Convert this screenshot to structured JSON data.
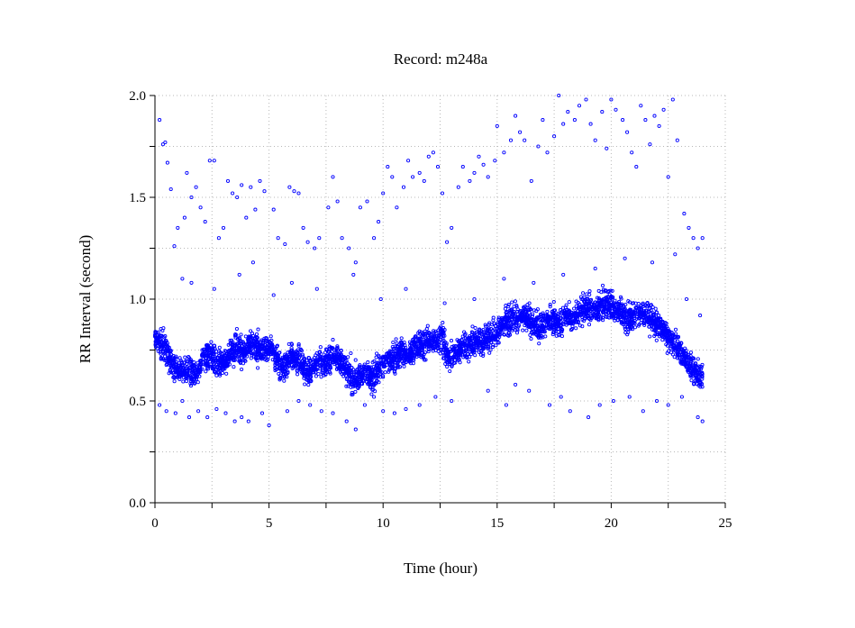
{
  "chart_data": {
    "type": "scatter",
    "title": "Record:  m248a",
    "xlabel": "Time (hour)",
    "ylabel": "RR Interval (second)",
    "xlim": [
      0,
      25
    ],
    "ylim": [
      0,
      2.0
    ],
    "xticks": [
      "0",
      "5",
      "10",
      "15",
      "20",
      "25"
    ],
    "yticks": [
      "0.0",
      "0.5",
      "1.0",
      "1.5",
      "2.0"
    ],
    "grid": true,
    "marker_color": "#0000ff",
    "series": [
      {
        "band_center": [
          [
            0.0,
            0.82
          ],
          [
            0.3,
            0.78
          ],
          [
            0.6,
            0.72
          ],
          [
            0.9,
            0.66
          ],
          [
            1.2,
            0.64
          ],
          [
            1.5,
            0.66
          ],
          [
            1.8,
            0.62
          ],
          [
            2.1,
            0.7
          ],
          [
            2.4,
            0.74
          ],
          [
            2.7,
            0.68
          ],
          [
            3.0,
            0.68
          ],
          [
            3.3,
            0.74
          ],
          [
            3.6,
            0.76
          ],
          [
            3.9,
            0.74
          ],
          [
            4.2,
            0.78
          ],
          [
            4.5,
            0.76
          ],
          [
            4.8,
            0.74
          ],
          [
            5.1,
            0.76
          ],
          [
            5.4,
            0.7
          ],
          [
            5.7,
            0.66
          ],
          [
            6.0,
            0.72
          ],
          [
            6.3,
            0.7
          ],
          [
            6.6,
            0.64
          ],
          [
            6.9,
            0.66
          ],
          [
            7.2,
            0.7
          ],
          [
            7.5,
            0.68
          ],
          [
            7.8,
            0.72
          ],
          [
            8.1,
            0.7
          ],
          [
            8.4,
            0.66
          ],
          [
            8.7,
            0.6
          ],
          [
            9.0,
            0.62
          ],
          [
            9.3,
            0.64
          ],
          [
            9.6,
            0.62
          ],
          [
            9.9,
            0.68
          ],
          [
            10.2,
            0.7
          ],
          [
            10.5,
            0.72
          ],
          [
            10.8,
            0.74
          ],
          [
            11.1,
            0.72
          ],
          [
            11.4,
            0.76
          ],
          [
            11.7,
            0.78
          ],
          [
            12.0,
            0.78
          ],
          [
            12.3,
            0.8
          ],
          [
            12.6,
            0.82
          ],
          [
            12.9,
            0.7
          ],
          [
            13.2,
            0.74
          ],
          [
            13.5,
            0.76
          ],
          [
            13.8,
            0.78
          ],
          [
            14.1,
            0.8
          ],
          [
            14.4,
            0.8
          ],
          [
            14.7,
            0.82
          ],
          [
            15.0,
            0.84
          ],
          [
            15.3,
            0.88
          ],
          [
            15.6,
            0.9
          ],
          [
            15.9,
            0.9
          ],
          [
            16.2,
            0.92
          ],
          [
            16.5,
            0.88
          ],
          [
            16.8,
            0.86
          ],
          [
            17.1,
            0.88
          ],
          [
            17.4,
            0.9
          ],
          [
            17.7,
            0.88
          ],
          [
            18.0,
            0.92
          ],
          [
            18.3,
            0.9
          ],
          [
            18.6,
            0.94
          ],
          [
            18.9,
            0.96
          ],
          [
            19.2,
            0.94
          ],
          [
            19.5,
            0.96
          ],
          [
            19.8,
            0.98
          ],
          [
            20.1,
            0.96
          ],
          [
            20.4,
            0.94
          ],
          [
            20.7,
            0.9
          ],
          [
            21.0,
            0.92
          ],
          [
            21.3,
            0.94
          ],
          [
            21.6,
            0.92
          ],
          [
            21.9,
            0.88
          ],
          [
            22.2,
            0.86
          ],
          [
            22.5,
            0.82
          ],
          [
            22.8,
            0.78
          ],
          [
            23.1,
            0.74
          ],
          [
            23.4,
            0.68
          ],
          [
            23.7,
            0.64
          ],
          [
            24.0,
            0.62
          ]
        ],
        "outliers": [
          [
            0.2,
            1.88
          ],
          [
            0.35,
            1.76
          ],
          [
            0.45,
            1.77
          ],
          [
            0.55,
            1.67
          ],
          [
            0.7,
            1.54
          ],
          [
            0.85,
            1.26
          ],
          [
            1.0,
            1.35
          ],
          [
            1.2,
            1.1
          ],
          [
            1.3,
            1.4
          ],
          [
            1.4,
            1.62
          ],
          [
            1.6,
            1.5
          ],
          [
            1.8,
            1.55
          ],
          [
            2.0,
            1.45
          ],
          [
            2.2,
            1.38
          ],
          [
            2.4,
            1.68
          ],
          [
            2.6,
            1.68
          ],
          [
            2.8,
            1.3
          ],
          [
            3.0,
            1.35
          ],
          [
            3.2,
            1.58
          ],
          [
            3.4,
            1.52
          ],
          [
            3.6,
            1.5
          ],
          [
            3.8,
            1.56
          ],
          [
            4.0,
            1.4
          ],
          [
            4.2,
            1.55
          ],
          [
            4.4,
            1.44
          ],
          [
            4.6,
            1.58
          ],
          [
            4.8,
            1.53
          ],
          [
            5.2,
            1.44
          ],
          [
            5.4,
            1.3
          ],
          [
            5.7,
            1.27
          ],
          [
            5.9,
            1.55
          ],
          [
            6.1,
            1.53
          ],
          [
            6.3,
            1.52
          ],
          [
            6.5,
            1.35
          ],
          [
            6.7,
            1.28
          ],
          [
            7.0,
            1.25
          ],
          [
            7.2,
            1.3
          ],
          [
            7.6,
            1.45
          ],
          [
            7.8,
            1.6
          ],
          [
            8.0,
            1.48
          ],
          [
            8.2,
            1.3
          ],
          [
            8.5,
            1.25
          ],
          [
            8.8,
            1.18
          ],
          [
            9.0,
            1.45
          ],
          [
            9.3,
            1.48
          ],
          [
            9.6,
            1.3
          ],
          [
            9.8,
            1.38
          ],
          [
            10.0,
            1.52
          ],
          [
            10.2,
            1.65
          ],
          [
            10.4,
            1.6
          ],
          [
            10.6,
            1.45
          ],
          [
            10.9,
            1.55
          ],
          [
            11.1,
            1.68
          ],
          [
            11.3,
            1.6
          ],
          [
            11.6,
            1.62
          ],
          [
            11.8,
            1.58
          ],
          [
            12.0,
            1.7
          ],
          [
            12.2,
            1.72
          ],
          [
            12.4,
            1.65
          ],
          [
            12.6,
            1.52
          ],
          [
            12.8,
            1.28
          ],
          [
            13.0,
            1.35
          ],
          [
            13.3,
            1.55
          ],
          [
            13.5,
            1.65
          ],
          [
            13.8,
            1.58
          ],
          [
            14.0,
            1.62
          ],
          [
            14.2,
            1.7
          ],
          [
            14.4,
            1.66
          ],
          [
            14.6,
            1.6
          ],
          [
            14.9,
            1.68
          ],
          [
            15.0,
            1.85
          ],
          [
            15.3,
            1.72
          ],
          [
            15.6,
            1.78
          ],
          [
            15.8,
            1.9
          ],
          [
            16.0,
            1.82
          ],
          [
            16.2,
            1.78
          ],
          [
            16.5,
            1.58
          ],
          [
            16.8,
            1.75
          ],
          [
            17.0,
            1.88
          ],
          [
            17.2,
            1.72
          ],
          [
            17.5,
            1.8
          ],
          [
            17.7,
            2.0
          ],
          [
            17.9,
            1.86
          ],
          [
            18.1,
            1.92
          ],
          [
            18.4,
            1.88
          ],
          [
            18.6,
            1.95
          ],
          [
            18.9,
            1.98
          ],
          [
            19.1,
            1.86
          ],
          [
            19.3,
            1.78
          ],
          [
            19.6,
            1.92
          ],
          [
            19.8,
            1.74
          ],
          [
            20.0,
            1.98
          ],
          [
            20.2,
            1.93
          ],
          [
            20.5,
            1.88
          ],
          [
            20.7,
            1.82
          ],
          [
            20.9,
            1.72
          ],
          [
            21.1,
            1.65
          ],
          [
            21.3,
            1.95
          ],
          [
            21.5,
            1.88
          ],
          [
            21.7,
            1.76
          ],
          [
            21.9,
            1.9
          ],
          [
            22.1,
            1.85
          ],
          [
            22.3,
            1.93
          ],
          [
            22.5,
            1.6
          ],
          [
            22.7,
            1.98
          ],
          [
            22.9,
            1.78
          ],
          [
            23.2,
            1.42
          ],
          [
            23.4,
            1.35
          ],
          [
            23.6,
            1.3
          ],
          [
            23.8,
            1.25
          ],
          [
            24.0,
            1.3
          ],
          [
            0.2,
            0.48
          ],
          [
            0.5,
            0.45
          ],
          [
            0.9,
            0.44
          ],
          [
            1.2,
            0.5
          ],
          [
            1.5,
            0.42
          ],
          [
            1.9,
            0.45
          ],
          [
            2.3,
            0.42
          ],
          [
            2.7,
            0.46
          ],
          [
            3.1,
            0.44
          ],
          [
            3.5,
            0.4
          ],
          [
            3.8,
            0.42
          ],
          [
            4.1,
            0.4
          ],
          [
            4.7,
            0.44
          ],
          [
            5.0,
            0.38
          ],
          [
            5.8,
            0.45
          ],
          [
            6.3,
            0.5
          ],
          [
            6.8,
            0.48
          ],
          [
            7.3,
            0.45
          ],
          [
            7.8,
            0.44
          ],
          [
            8.4,
            0.4
          ],
          [
            8.8,
            0.36
          ],
          [
            9.2,
            0.48
          ],
          [
            9.6,
            0.52
          ],
          [
            10.0,
            0.45
          ],
          [
            10.5,
            0.44
          ],
          [
            11.0,
            0.46
          ],
          [
            11.6,
            0.48
          ],
          [
            12.3,
            0.52
          ],
          [
            13.0,
            0.5
          ],
          [
            14.6,
            0.55
          ],
          [
            15.4,
            0.48
          ],
          [
            15.8,
            0.58
          ],
          [
            16.4,
            0.55
          ],
          [
            17.3,
            0.48
          ],
          [
            17.8,
            0.52
          ],
          [
            18.2,
            0.45
          ],
          [
            19.0,
            0.42
          ],
          [
            19.5,
            0.48
          ],
          [
            20.1,
            0.5
          ],
          [
            20.8,
            0.52
          ],
          [
            21.4,
            0.45
          ],
          [
            22.0,
            0.5
          ],
          [
            22.5,
            0.48
          ],
          [
            23.1,
            0.52
          ],
          [
            23.8,
            0.42
          ],
          [
            24.0,
            0.4
          ],
          [
            1.6,
            1.08
          ],
          [
            2.6,
            1.05
          ],
          [
            3.7,
            1.12
          ],
          [
            4.3,
            1.18
          ],
          [
            5.2,
            1.02
          ],
          [
            6.0,
            1.08
          ],
          [
            7.1,
            1.05
          ],
          [
            8.7,
            1.12
          ],
          [
            9.9,
            1.0
          ],
          [
            11.0,
            1.05
          ],
          [
            12.7,
            0.98
          ],
          [
            14.0,
            1.0
          ],
          [
            15.3,
            1.1
          ],
          [
            16.6,
            1.08
          ],
          [
            17.9,
            1.12
          ],
          [
            19.3,
            1.15
          ],
          [
            20.6,
            1.2
          ],
          [
            21.8,
            1.18
          ],
          [
            22.8,
            1.22
          ],
          [
            23.3,
            1.0
          ],
          [
            23.9,
            0.92
          ]
        ]
      }
    ]
  }
}
